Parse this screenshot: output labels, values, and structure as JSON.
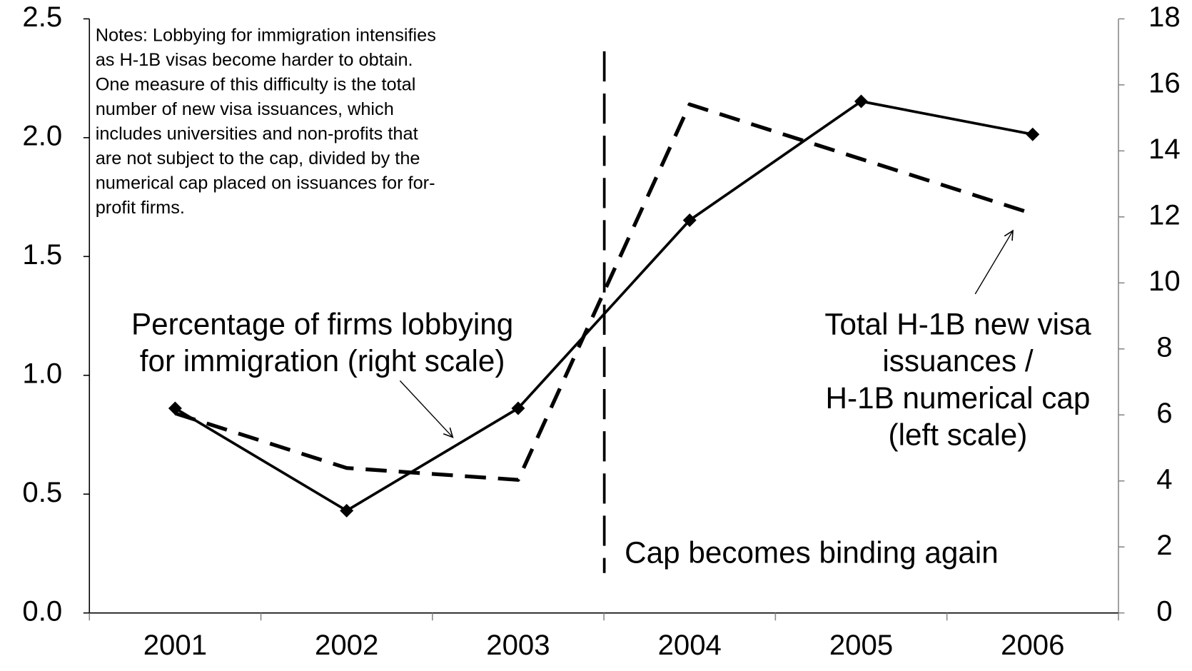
{
  "chart_data": {
    "type": "line",
    "categories": [
      "2001",
      "2002",
      "2003",
      "2004",
      "2005",
      "2006"
    ],
    "series": [
      {
        "color": "#000000",
        "style": "solid",
        "marker": "diamond",
        "axis": "y2",
        "values": [
          6.2,
          3.1,
          6.2,
          11.9,
          15.5,
          14.5
        ]
      },
      {
        "color": "#000000",
        "style": "dashed",
        "axis": "y",
        "values": [
          0.84,
          0.61,
          0.56,
          2.14,
          1.91,
          1.68
        ]
      }
    ],
    "ylim": [
      0,
      2.5
    ],
    "yticks": [
      {
        "value": 0,
        "label": "0.0"
      },
      {
        "value": 0.5,
        "label": "0.5"
      },
      {
        "value": 1,
        "label": "1.0"
      },
      {
        "value": 1.5,
        "label": "1.5"
      },
      {
        "value": 2,
        "label": "2.0"
      },
      {
        "value": 2.5,
        "label": "2.5"
      }
    ],
    "y2lim": [
      0,
      18
    ],
    "y2ticks": [
      0,
      2,
      4,
      6,
      8,
      10,
      12,
      14,
      16,
      18
    ],
    "notes": [
      "Notes:  Lobbying for immigration intensifies",
      "as H-1B visas become harder to obtain.",
      "One measure of this difficulty is the total",
      "number of new visa issuances, which",
      "includes universities and non-profits that",
      "are not subject to the cap, divided by the",
      "numerical cap placed on issuances for for-",
      "profit firms."
    ],
    "series_labels": [
      [
        "Percentage of firms lobbying",
        "for immigration (right scale)"
      ],
      [
        "Total H-1B new visa",
        "issuances /",
        "H-1B numerical cap",
        "(left scale)"
      ]
    ],
    "cap_annotation": "Cap becomes binding again"
  }
}
